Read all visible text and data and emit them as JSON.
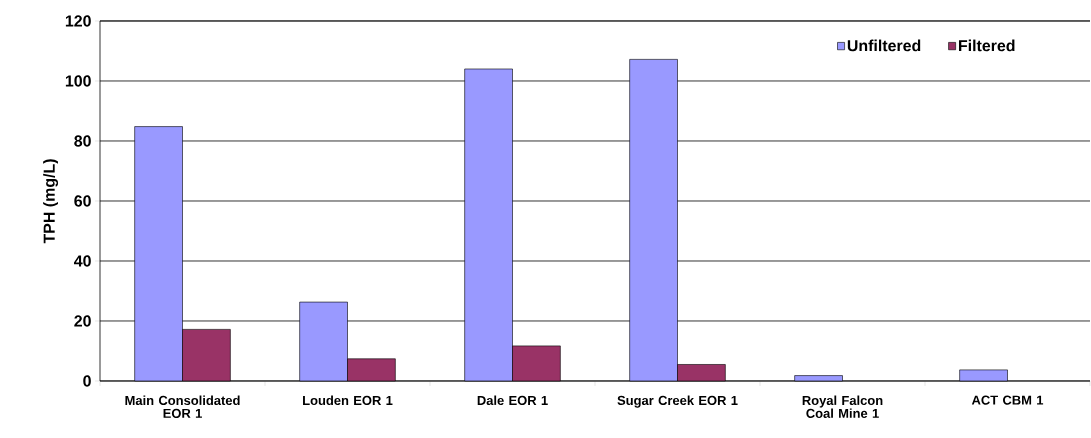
{
  "chart_data": {
    "type": "bar",
    "ylabel": "TPH (mg/L)",
    "categories": [
      "Main Consolidated EOR 1",
      "Louden EOR 1",
      "Dale EOR 1",
      "Sugar Creek EOR 1",
      "Royal Falcon Coal Mine 1",
      "ACT CBM 1"
    ],
    "series": [
      {
        "name": "Unfiltered",
        "color": "#9999ff",
        "values": [
          84.8,
          26.3,
          104.0,
          107.2,
          1.8,
          3.7
        ]
      },
      {
        "name": "Filtered",
        "color": "#993366",
        "values": [
          17.2,
          7.4,
          11.7,
          5.5,
          null,
          null
        ]
      }
    ],
    "ylim": [
      0,
      120
    ],
    "yticks": [
      0,
      20,
      40,
      60,
      80,
      100,
      120
    ],
    "grid": "y",
    "legend": "top right"
  }
}
